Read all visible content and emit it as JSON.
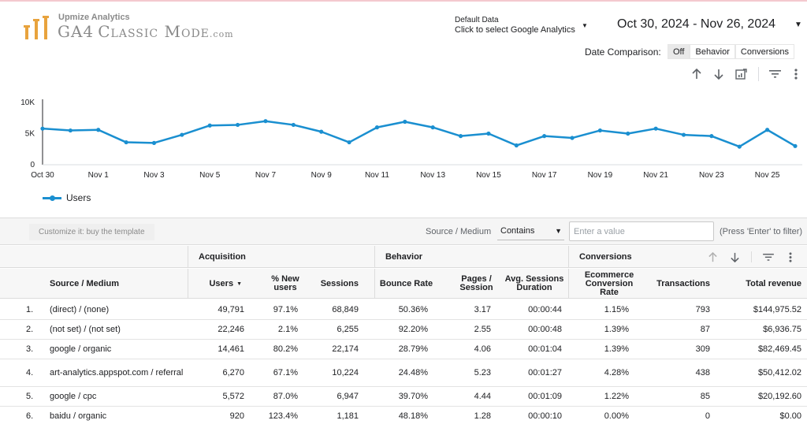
{
  "logo": {
    "subtitle": "Upmize Analytics",
    "title_ga4": "GA4",
    "title_main": "Classic Mode",
    "title_suffix": ".com"
  },
  "data_source": {
    "label": "Default Data",
    "value": "Click to select Google Analytics"
  },
  "date_range": "Oct 30, 2024 - Nov 26, 2024",
  "date_comparison": {
    "label": "Date Comparison:",
    "options": [
      "Off",
      "Behavior",
      "Conversions"
    ],
    "selected": "Off"
  },
  "chart_toolbar": {
    "icons": [
      "sort-ascending-icon",
      "sort-descending-icon",
      "drill-down-icon",
      "filter-icon",
      "more-vert-icon"
    ]
  },
  "chart_data": {
    "type": "line",
    "x": [
      "Oct 30",
      "Oct 31",
      "Nov 1",
      "Nov 2",
      "Nov 3",
      "Nov 4",
      "Nov 5",
      "Nov 6",
      "Nov 7",
      "Nov 8",
      "Nov 9",
      "Nov 10",
      "Nov 11",
      "Nov 12",
      "Nov 13",
      "Nov 14",
      "Nov 15",
      "Nov 16",
      "Nov 17",
      "Nov 18",
      "Nov 19",
      "Nov 20",
      "Nov 21",
      "Nov 22",
      "Nov 23",
      "Nov 24",
      "Nov 25",
      "Nov 26"
    ],
    "xticks": [
      "Oct 30",
      "Nov 1",
      "Nov 3",
      "Nov 5",
      "Nov 7",
      "Nov 9",
      "Nov 11",
      "Nov 13",
      "Nov 15",
      "Nov 17",
      "Nov 19",
      "Nov 21",
      "Nov 23",
      "Nov 25"
    ],
    "series": [
      {
        "name": "Users",
        "values": [
          5800,
          5500,
          5600,
          3600,
          3500,
          4800,
          6300,
          6400,
          7000,
          6400,
          5300,
          3600,
          6000,
          6900,
          6000,
          4600,
          5000,
          3100,
          4600,
          4300,
          5500,
          5000,
          5800,
          4800,
          4600,
          2900,
          5600,
          3000
        ]
      }
    ],
    "yticks": [
      "0",
      "5K",
      "10K"
    ],
    "ylim": [
      0,
      10000
    ],
    "grid": false,
    "legend": "bottom-left",
    "color": "#1a8fd0"
  },
  "filter_bar": {
    "customize_label": "Customize it: buy the template",
    "field_label": "Source / Medium",
    "operator": "Contains",
    "input_placeholder": "Enter a value",
    "hint": "(Press 'Enter' to filter)"
  },
  "table": {
    "groups": [
      "Acquisition",
      "Behavior",
      "Conversions"
    ],
    "columns": [
      "Source / Medium",
      "Users",
      "% New users",
      "Sessions",
      "Bounce Rate",
      "Pages / Session",
      "Avg. Sessions Duration",
      "Ecommerce Conversion Rate",
      "Transactions",
      "Total revenue"
    ],
    "rows": [
      [
        "1.",
        "(direct) / (none)",
        "49,791",
        "97.1%",
        "68,849",
        "50.36%",
        "3.17",
        "00:00:44",
        "1.15%",
        "793",
        "$144,975.52"
      ],
      [
        "2.",
        "(not set) / (not set)",
        "22,246",
        "2.1%",
        "6,255",
        "92.20%",
        "2.55",
        "00:00:48",
        "1.39%",
        "87",
        "$6,936.75"
      ],
      [
        "3.",
        "google / organic",
        "14,461",
        "80.2%",
        "22,174",
        "28.79%",
        "4.06",
        "00:01:04",
        "1.39%",
        "309",
        "$82,469.45"
      ],
      [
        "4.",
        "art-analytics.appspot.com / referral",
        "6,270",
        "67.1%",
        "10,224",
        "24.48%",
        "5.23",
        "00:01:27",
        "4.28%",
        "438",
        "$50,412.02"
      ],
      [
        "5.",
        "google / cpc",
        "5,572",
        "87.0%",
        "6,947",
        "39.70%",
        "4.44",
        "00:01:09",
        "1.22%",
        "85",
        "$20,192.60"
      ],
      [
        "6.",
        "baidu / organic",
        "920",
        "123.4%",
        "1,181",
        "48.18%",
        "1.28",
        "00:00:10",
        "0.00%",
        "0",
        "$0.00"
      ]
    ]
  }
}
